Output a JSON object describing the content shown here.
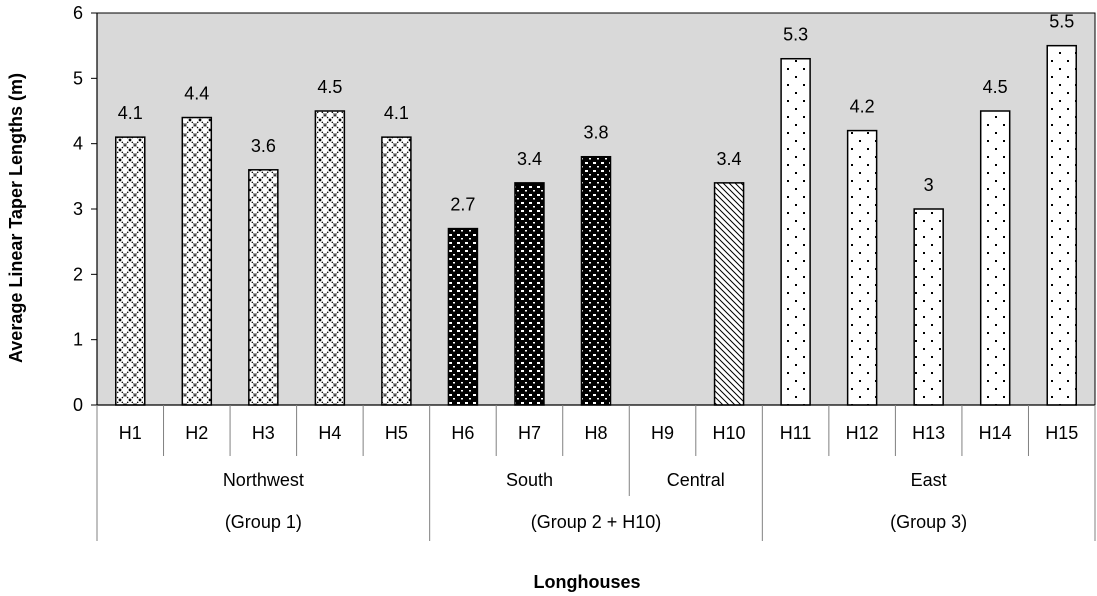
{
  "chart_data": {
    "type": "bar",
    "ylabel": "Average Linear Taper Lengths (m)",
    "xlabel": "Longhouses",
    "ylim": [
      0,
      6
    ],
    "yticks": [
      0,
      1,
      2,
      3,
      4,
      5,
      6
    ],
    "grid": false,
    "plot_background": "#d9d9d9",
    "categories": [
      "H1",
      "H2",
      "H3",
      "H4",
      "H5",
      "H6",
      "H7",
      "H8",
      "H9",
      "H10",
      "H11",
      "H12",
      "H13",
      "H14",
      "H15"
    ],
    "values": [
      4.1,
      4.4,
      3.6,
      4.5,
      4.1,
      2.7,
      3.4,
      3.8,
      null,
      3.4,
      5.3,
      4.2,
      3,
      4.5,
      5.5
    ],
    "data_labels": [
      "4.1",
      "4.4",
      "3.6",
      "4.5",
      "4.1",
      "2.7",
      "3.4",
      "3.8",
      "",
      "3.4",
      "5.3",
      "4.2",
      "3",
      "4.5",
      "5.5"
    ],
    "patterns": [
      "crosshatch",
      "crosshatch",
      "crosshatch",
      "crosshatch",
      "crosshatch",
      "dark-dotted",
      "dark-dotted",
      "dark-dotted",
      "none",
      "diagonal",
      "sparse-dots",
      "sparse-dots",
      "sparse-dots",
      "sparse-dots",
      "sparse-dots"
    ],
    "region_groups": [
      {
        "label": "Northwest",
        "start": 0,
        "count": 5
      },
      {
        "label": "South",
        "start": 5,
        "count": 3
      },
      {
        "label": "Central",
        "start": 8,
        "count": 2
      },
      {
        "label": "East",
        "start": 10,
        "count": 5
      }
    ],
    "group_groups": [
      {
        "label": "(Group 1)",
        "start": 0,
        "count": 5
      },
      {
        "label": "(Group 2 + H10)",
        "start": 5,
        "count": 5
      },
      {
        "label": "(Group 3)",
        "start": 10,
        "count": 5
      }
    ]
  }
}
